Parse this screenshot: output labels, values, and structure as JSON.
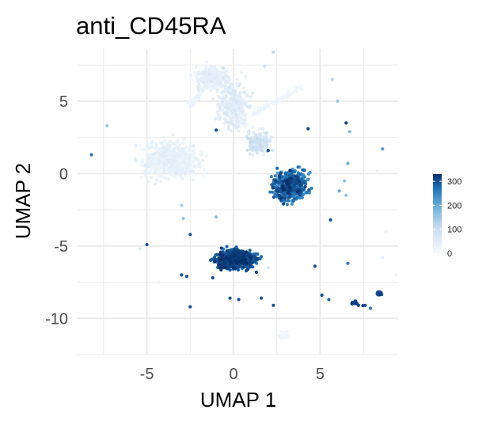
{
  "chart_data": {
    "type": "scatter",
    "title": "anti_CD45RA",
    "xlabel": "UMAP 1",
    "ylabel": "UMAP 2",
    "xlim": [
      -9.0,
      9.5
    ],
    "ylim": [
      -12.5,
      8.6
    ],
    "x_ticks": [
      -5,
      0,
      5
    ],
    "y_ticks": [
      5,
      0,
      -5,
      -10
    ],
    "x_tick_labels": [
      "-5",
      "0",
      "5"
    ],
    "y_tick_labels": [
      "5",
      "0",
      "-5",
      "-10"
    ],
    "grid": true,
    "legend": {
      "placement": "right",
      "type": "colorbar",
      "ticks": [
        0,
        100,
        200,
        300
      ],
      "tick_labels": [
        "0",
        "100",
        "200",
        "300"
      ],
      "range": [
        0,
        330
      ]
    },
    "color_low": "#f7fbff",
    "color_high": "#08306b",
    "clusters": [
      {
        "region": "upper-left blob",
        "center": [
          -3.6,
          0.9
        ],
        "spread": [
          1.5,
          1.1
        ],
        "count": 650,
        "value_mean": 25,
        "value_sd": 18
      },
      {
        "region": "top arm",
        "center": [
          -1.2,
          6.6
        ],
        "spread": [
          0.9,
          0.7
        ],
        "count": 260,
        "value_mean": 30,
        "value_sd": 20
      },
      {
        "region": "upper bridge",
        "center": [
          0.0,
          4.7
        ],
        "spread": [
          0.8,
          1.4
        ],
        "count": 320,
        "value_mean": 40,
        "value_sd": 25
      },
      {
        "region": "diagonal bridge",
        "center": [
          1.5,
          2.2
        ],
        "spread": [
          0.6,
          0.7
        ],
        "count": 200,
        "value_mean": 60,
        "value_sd": 35
      },
      {
        "region": "right cluster",
        "center": [
          3.3,
          -0.8
        ],
        "spread": [
          0.8,
          0.9
        ],
        "count": 650,
        "value_mean": 250,
        "value_sd": 60
      },
      {
        "region": "lower-left cluster",
        "center": [
          0.1,
          -5.9
        ],
        "spread": [
          0.95,
          0.55
        ],
        "count": 850,
        "value_mean": 290,
        "value_sd": 35
      },
      {
        "region": "bottom small cluster",
        "center": [
          2.9,
          -11.1
        ],
        "spread": [
          0.25,
          0.25
        ],
        "count": 40,
        "value_mean": 15,
        "value_sd": 8
      },
      {
        "region": "far right small cluster",
        "center": [
          8.4,
          -8.3
        ],
        "spread": [
          0.12,
          0.12
        ],
        "count": 25,
        "value_mean": 300,
        "value_sd": 25
      }
    ],
    "streaks": [
      {
        "from": [
          1.1,
          4.1
        ],
        "to": [
          3.9,
          6.0
        ],
        "count": 70,
        "value_mean": 20,
        "value_sd": 10
      },
      {
        "from": [
          -2.6,
          4.6
        ],
        "to": [
          -1.0,
          6.8
        ],
        "count": 60,
        "value_mean": 20,
        "value_sd": 10
      },
      {
        "from": [
          6.8,
          -8.9
        ],
        "to": [
          7.6,
          -9.1
        ],
        "count": 10,
        "value_mean": 310,
        "value_sd": 15
      }
    ],
    "outliers": [
      [
        -8.2,
        1.3,
        260
      ],
      [
        -7.3,
        3.3,
        150
      ],
      [
        -5.4,
        -5.2,
        60
      ],
      [
        -5.0,
        -4.9,
        300
      ],
      [
        -4.3,
        -7.5,
        20
      ],
      [
        -3.0,
        -7.0,
        300
      ],
      [
        -2.7,
        -7.1,
        300
      ],
      [
        -2.5,
        -9.2,
        300
      ],
      [
        -2.5,
        -4.2,
        300
      ],
      [
        -1.2,
        -7.2,
        300
      ],
      [
        -0.2,
        -8.6,
        300
      ],
      [
        0.3,
        -8.7,
        300
      ],
      [
        1.6,
        -8.6,
        300
      ],
      [
        2.3,
        -9.1,
        300
      ],
      [
        2.0,
        -6.5,
        60
      ],
      [
        4.7,
        -6.4,
        300
      ],
      [
        5.1,
        -8.4,
        300
      ],
      [
        5.5,
        -8.7,
        280
      ],
      [
        6.6,
        -6.2,
        260
      ],
      [
        5.6,
        -3.2,
        300
      ],
      [
        5.7,
        6.5,
        120
      ],
      [
        6.0,
        5.0,
        150
      ],
      [
        6.5,
        3.5,
        320
      ],
      [
        6.7,
        2.9,
        180
      ],
      [
        6.6,
        0.7,
        200
      ],
      [
        6.4,
        -0.5,
        160
      ],
      [
        6.1,
        -1.2,
        200
      ],
      [
        6.5,
        -1.5,
        160
      ],
      [
        8.6,
        1.7,
        220
      ],
      [
        8.3,
        0.2,
        20
      ],
      [
        8.8,
        -4.0,
        25
      ],
      [
        8.6,
        -5.8,
        40
      ],
      [
        9.4,
        -7.0,
        30
      ],
      [
        7.6,
        -9.1,
        300
      ],
      [
        7.9,
        -9.3,
        260
      ],
      [
        2.3,
        8.4,
        120
      ],
      [
        -1.0,
        3.0,
        300
      ],
      [
        -3.0,
        -2.2,
        140
      ],
      [
        -2.9,
        -3.1,
        150
      ],
      [
        -1.0,
        -3.0,
        160
      ],
      [
        4.3,
        3.1,
        310
      ],
      [
        2.0,
        1.6,
        300
      ],
      [
        -0.6,
        7.3,
        100
      ],
      [
        1.8,
        7.4,
        80
      ]
    ]
  }
}
